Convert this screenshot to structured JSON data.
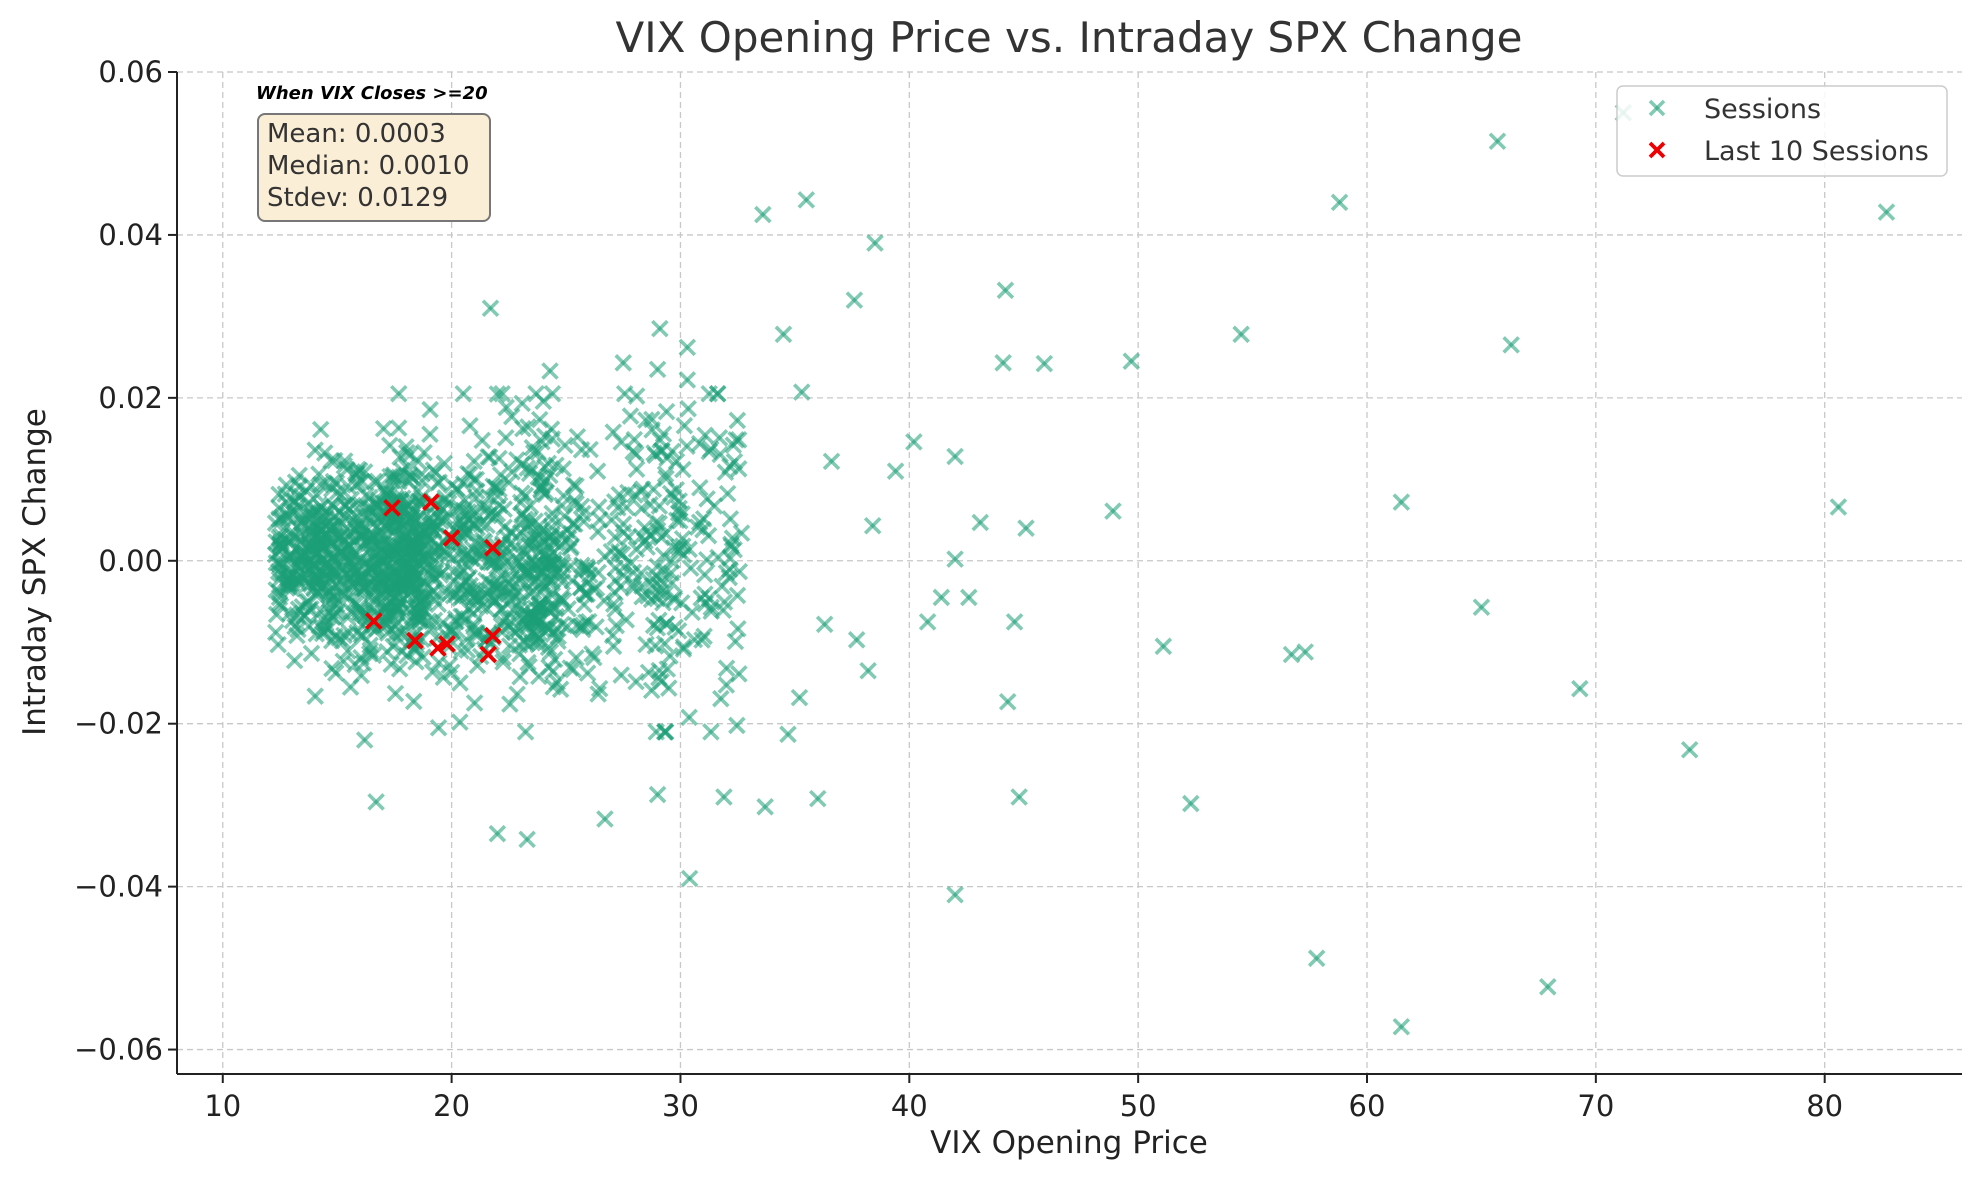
{
  "chart_data": {
    "type": "scatter",
    "title": "VIX Opening Price vs. Intraday SPX Change",
    "xlabel": "VIX Opening Price",
    "ylabel": "Intraday SPX Change",
    "xlim": [
      8,
      86
    ],
    "ylim": [
      -0.063,
      0.06
    ],
    "xticks": [
      10,
      20,
      30,
      40,
      50,
      60,
      70,
      80
    ],
    "yticks": [
      -0.06,
      -0.04,
      -0.02,
      0.0,
      0.02,
      0.04,
      0.06
    ],
    "ytick_labels": [
      "−0.06",
      "−0.04",
      "−0.02",
      "0.00",
      "0.02",
      "0.04",
      "0.06"
    ],
    "grid": true,
    "legend_position": "top-right",
    "annotation": {
      "heading": "When VIX Closes >=20",
      "lines": [
        "Mean: 0.0003",
        "Median: 0.0010",
        "Stdev: 0.0129"
      ]
    },
    "colors": {
      "sessions": "#1b9e77",
      "last10": "#ee0000",
      "stats_box": "#fbeed6"
    },
    "series": [
      {
        "name": "Sessions",
        "marker": "x",
        "dense_cluster": {
          "note": "approximately 2000 sessions clustered at VIX 12-33, change -0.02 to 0.02",
          "x_range": [
            12,
            33
          ],
          "y_range": [
            -0.02,
            0.02
          ]
        },
        "points": [
          [
            65.7,
            0.0515
          ],
          [
            71.2,
            0.055
          ],
          [
            82.7,
            0.0428
          ],
          [
            58.8,
            0.044
          ],
          [
            35.5,
            0.0443
          ],
          [
            33.6,
            0.0425
          ],
          [
            38.5,
            0.039
          ],
          [
            37.6,
            0.032
          ],
          [
            44.2,
            0.0332
          ],
          [
            21.7,
            0.031
          ],
          [
            29.1,
            0.0285
          ],
          [
            34.5,
            0.0278
          ],
          [
            54.5,
            0.0278
          ],
          [
            66.3,
            0.0265
          ],
          [
            30.3,
            0.0262
          ],
          [
            44.1,
            0.0243
          ],
          [
            45.9,
            0.0242
          ],
          [
            49.7,
            0.0245
          ],
          [
            24.3,
            0.0233
          ],
          [
            27.5,
            0.0243
          ],
          [
            29.0,
            0.0235
          ],
          [
            30.3,
            0.0222
          ],
          [
            35.3,
            0.0207
          ],
          [
            40.2,
            0.0146
          ],
          [
            42.0,
            0.0128
          ],
          [
            36.6,
            0.0122
          ],
          [
            39.4,
            0.011
          ],
          [
            61.5,
            0.0072
          ],
          [
            48.9,
            0.0061
          ],
          [
            80.6,
            0.0066
          ],
          [
            43.1,
            0.0047
          ],
          [
            45.1,
            0.004
          ],
          [
            38.4,
            0.0043
          ],
          [
            42.0,
            0.0002
          ],
          [
            41.4,
            -0.0045
          ],
          [
            42.6,
            -0.0045
          ],
          [
            40.8,
            -0.0075
          ],
          [
            44.6,
            -0.0075
          ],
          [
            36.3,
            -0.0078
          ],
          [
            37.7,
            -0.0097
          ],
          [
            38.2,
            -0.0135
          ],
          [
            51.1,
            -0.0105
          ],
          [
            56.7,
            -0.0115
          ],
          [
            57.3,
            -0.0112
          ],
          [
            65.0,
            -0.0057
          ],
          [
            69.3,
            -0.0157
          ],
          [
            35.2,
            -0.0168
          ],
          [
            34.7,
            -0.0213
          ],
          [
            44.3,
            -0.0173
          ],
          [
            74.1,
            -0.0232
          ],
          [
            16.2,
            -0.022
          ],
          [
            16.7,
            -0.0296
          ],
          [
            22.0,
            -0.0335
          ],
          [
            23.3,
            -0.0342
          ],
          [
            26.7,
            -0.0317
          ],
          [
            29.0,
            -0.0287
          ],
          [
            31.9,
            -0.029
          ],
          [
            33.7,
            -0.0302
          ],
          [
            36.0,
            -0.0292
          ],
          [
            44.8,
            -0.029
          ],
          [
            52.3,
            -0.0298
          ],
          [
            30.4,
            -0.039
          ],
          [
            42.0,
            -0.041
          ],
          [
            57.8,
            -0.0488
          ],
          [
            67.9,
            -0.0523
          ],
          [
            61.5,
            -0.0572
          ]
        ]
      },
      {
        "name": "Last 10 Sessions",
        "marker": "x",
        "points": [
          [
            17.4,
            0.0065
          ],
          [
            19.1,
            0.0072
          ],
          [
            20.0,
            0.0028
          ],
          [
            21.8,
            0.0016
          ],
          [
            16.6,
            -0.0074
          ],
          [
            18.4,
            -0.0098
          ],
          [
            19.4,
            -0.0107
          ],
          [
            19.8,
            -0.0102
          ],
          [
            21.6,
            -0.0115
          ],
          [
            21.8,
            -0.0092
          ]
        ]
      }
    ]
  }
}
